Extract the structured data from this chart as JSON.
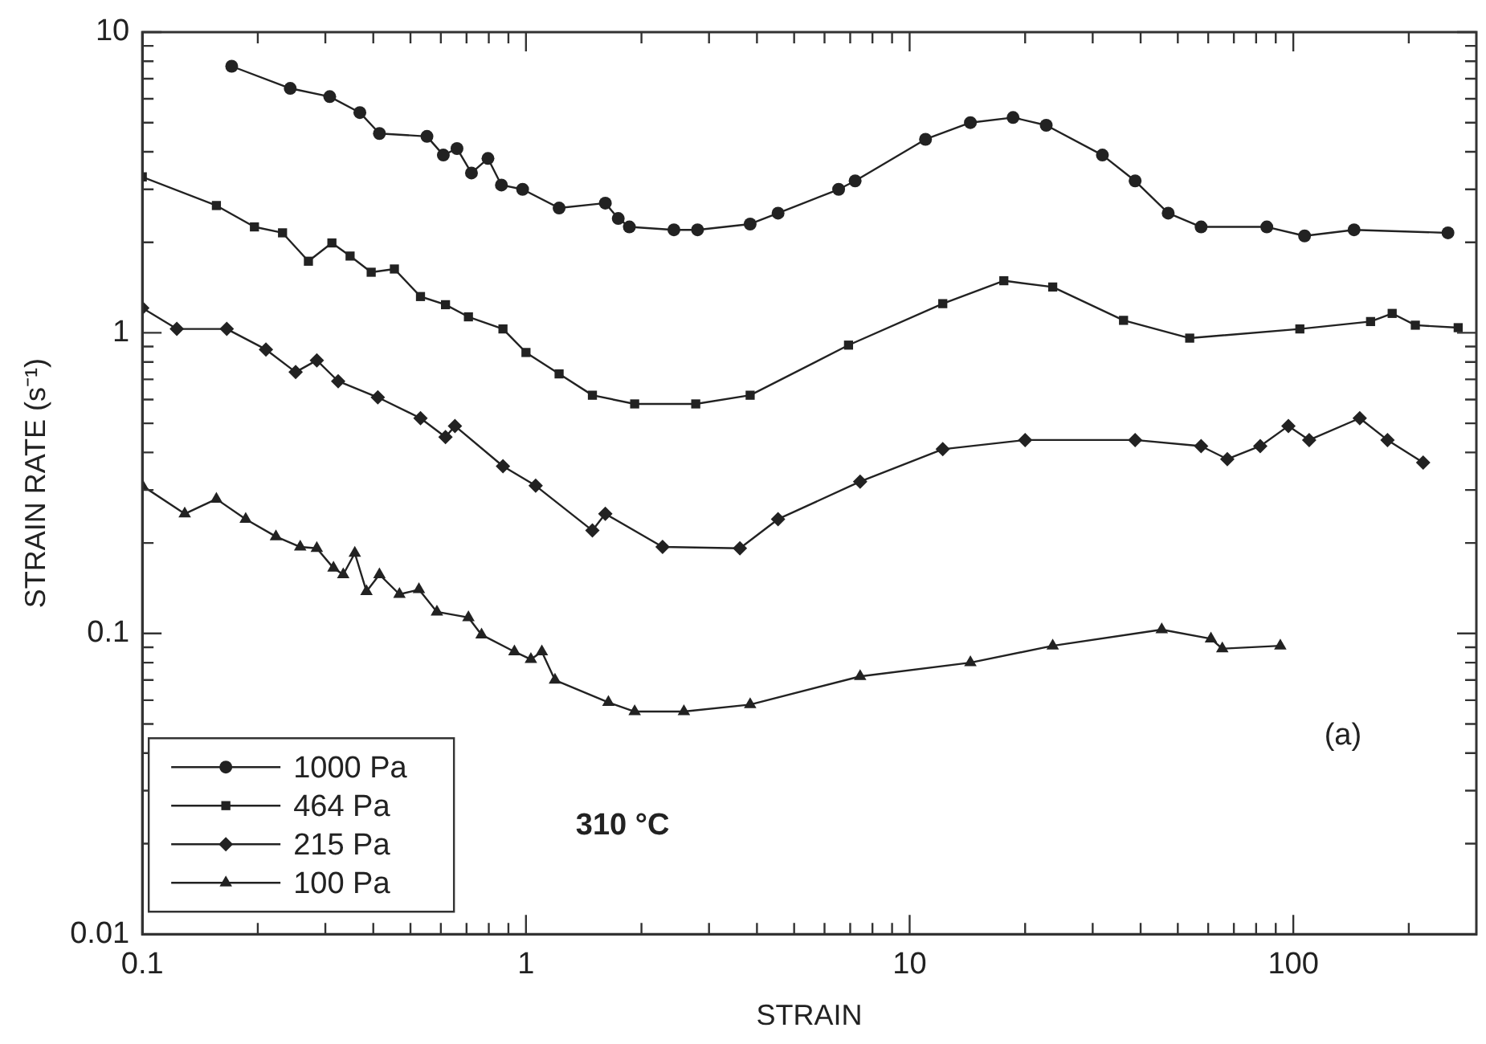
{
  "chart_data": {
    "type": "line",
    "xlabel": "STRAIN",
    "ylabel": "STRAIN RATE (s⁻¹)",
    "log": "xy",
    "xlim": [
      0.1,
      300
    ],
    "ylim": [
      0.01,
      10
    ],
    "xticks": [
      0.1,
      {
        "value": 0.2,
        "label": null
      },
      {
        "value": 0.3,
        "label": null
      },
      {
        "value": 0.4,
        "label": null
      },
      {
        "value": 0.5,
        "label": null
      },
      {
        "value": 0.6,
        "label": null
      },
      {
        "value": 0.7,
        "label": null
      },
      {
        "value": 0.8,
        "label": null
      },
      {
        "value": 0.9,
        "label": null
      },
      1,
      {
        "value": 2,
        "label": null
      },
      {
        "value": 3,
        "label": null
      },
      {
        "value": 4,
        "label": null
      },
      {
        "value": 5,
        "label": null
      },
      {
        "value": 6,
        "label": null
      },
      {
        "value": 7,
        "label": null
      },
      {
        "value": 8,
        "label": null
      },
      {
        "value": 9,
        "label": null
      },
      10,
      {
        "value": 20,
        "label": null
      },
      {
        "value": 30,
        "label": null
      },
      {
        "value": 40,
        "label": null
      },
      {
        "value": 50,
        "label": null
      },
      {
        "value": 60,
        "label": null
      },
      {
        "value": 70,
        "label": null
      },
      {
        "value": 80,
        "label": null
      },
      {
        "value": 90,
        "label": null
      },
      100,
      {
        "value": 200,
        "label": null
      }
    ],
    "yticks": [
      0.01,
      {
        "value": 0.02,
        "label": null
      },
      {
        "value": 0.03,
        "label": null
      },
      {
        "value": 0.04,
        "label": null
      },
      {
        "value": 0.05,
        "label": null
      },
      {
        "value": 0.06,
        "label": null
      },
      {
        "value": 0.07,
        "label": null
      },
      {
        "value": 0.08,
        "label": null
      },
      {
        "value": 0.09,
        "label": null
      },
      0.1,
      {
        "value": 0.2,
        "label": null
      },
      {
        "value": 0.3,
        "label": null
      },
      {
        "value": 0.4,
        "label": null
      },
      {
        "value": 0.5,
        "label": null
      },
      {
        "value": 0.6,
        "label": null
      },
      {
        "value": 0.7,
        "label": null
      },
      {
        "value": 0.8,
        "label": null
      },
      {
        "value": 0.9,
        "label": null
      },
      1,
      {
        "value": 2,
        "label": null
      },
      {
        "value": 3,
        "label": null
      },
      {
        "value": 4,
        "label": null
      },
      {
        "value": 5,
        "label": null
      },
      {
        "value": 6,
        "label": null
      },
      {
        "value": 7,
        "label": null
      },
      {
        "value": 8,
        "label": null
      },
      {
        "value": 9,
        "label": null
      },
      10
    ],
    "legend": "bottom left",
    "line_style": "solid",
    "annotations": [
      "310 °C",
      "(a)"
    ],
    "series": [
      {
        "name": "1000 Pa",
        "color": "#222222",
        "marker": "circle",
        "x": [
          0.171,
          0.243,
          0.308,
          0.369,
          0.415,
          0.552,
          0.609,
          0.661,
          0.721,
          0.796,
          0.863,
          0.98,
          1.22,
          1.61,
          1.74,
          1.86,
          2.43,
          2.8,
          3.84,
          4.54,
          6.53,
          7.21,
          11.0,
          14.4,
          18.6,
          22.7,
          31.8,
          38.7,
          47.2,
          57.5,
          85.3,
          107,
          144,
          253
        ],
        "values": [
          7.7,
          6.5,
          6.1,
          5.4,
          4.6,
          4.5,
          3.9,
          4.1,
          3.4,
          3.8,
          3.1,
          3.0,
          2.6,
          2.7,
          2.4,
          2.25,
          2.2,
          2.2,
          2.3,
          2.5,
          3.0,
          3.2,
          4.4,
          5.0,
          5.2,
          4.9,
          3.9,
          3.2,
          2.5,
          2.25,
          2.25,
          2.1,
          2.2,
          2.15
        ]
      },
      {
        "name": "464 Pa",
        "color": "#222222",
        "marker": "square",
        "x": [
          0.1,
          0.156,
          0.196,
          0.232,
          0.271,
          0.312,
          0.348,
          0.395,
          0.454,
          0.531,
          0.617,
          0.708,
          0.871,
          1.0,
          1.22,
          1.49,
          1.92,
          2.77,
          3.84,
          6.93,
          12.2,
          17.6,
          23.6,
          36.1,
          53.7,
          104,
          159,
          181,
          208,
          269
        ],
        "values": [
          3.3,
          2.65,
          2.25,
          2.15,
          1.73,
          1.99,
          1.8,
          1.59,
          1.63,
          1.32,
          1.24,
          1.13,
          1.03,
          0.86,
          0.73,
          0.62,
          0.58,
          0.58,
          0.62,
          0.91,
          1.25,
          1.49,
          1.42,
          1.1,
          0.96,
          1.03,
          1.09,
          1.16,
          1.06,
          1.04
        ]
      },
      {
        "name": "215 Pa",
        "color": "#222222",
        "marker": "diamond",
        "x": [
          0.1,
          0.123,
          0.166,
          0.21,
          0.251,
          0.285,
          0.324,
          0.411,
          0.531,
          0.617,
          0.653,
          0.871,
          1.06,
          1.49,
          1.61,
          2.27,
          3.61,
          4.54,
          7.43,
          12.2,
          20.0,
          38.7,
          57.5,
          67.3,
          82.0,
          97.1,
          110,
          149,
          176,
          218
        ],
        "values": [
          1.21,
          1.03,
          1.03,
          0.88,
          0.74,
          0.81,
          0.69,
          0.61,
          0.52,
          0.45,
          0.49,
          0.36,
          0.31,
          0.22,
          0.25,
          0.194,
          0.192,
          0.24,
          0.32,
          0.41,
          0.44,
          0.44,
          0.42,
          0.38,
          0.42,
          0.49,
          0.44,
          0.52,
          0.44,
          0.37
        ]
      },
      {
        "name": "100 Pa",
        "color": "#222222",
        "marker": "triangle",
        "x": [
          0.1,
          0.129,
          0.156,
          0.186,
          0.223,
          0.258,
          0.285,
          0.315,
          0.334,
          0.358,
          0.384,
          0.415,
          0.468,
          0.526,
          0.586,
          0.708,
          0.766,
          0.933,
          1.03,
          1.1,
          1.19,
          1.64,
          1.92,
          2.58,
          3.84,
          7.43,
          14.4,
          23.6,
          45.4,
          61.0,
          65.3,
          92.5
        ],
        "values": [
          0.31,
          0.25,
          0.28,
          0.24,
          0.21,
          0.194,
          0.192,
          0.165,
          0.157,
          0.185,
          0.138,
          0.157,
          0.135,
          0.14,
          0.118,
          0.113,
          0.099,
          0.087,
          0.082,
          0.087,
          0.07,
          0.059,
          0.055,
          0.055,
          0.058,
          0.072,
          0.08,
          0.091,
          0.103,
          0.096,
          0.089,
          0.091
        ]
      }
    ]
  }
}
